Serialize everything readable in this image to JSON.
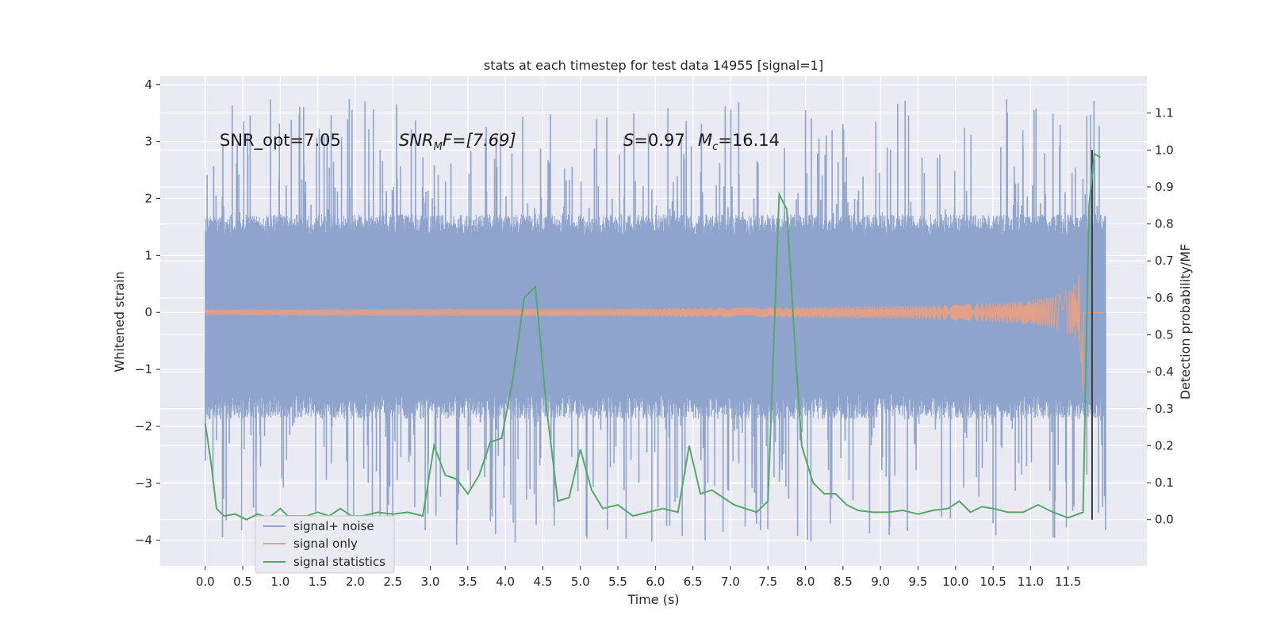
{
  "chart_data": {
    "type": "line",
    "title": "stats at each timestep for test data 14955 [signal=1]",
    "xlabel": "Time (s)",
    "ylabel": "Whitened strain",
    "y2label": "Detection probability/MF",
    "xlim": [
      -0.6,
      12.55
    ],
    "ylim": [
      -4.45,
      4.15
    ],
    "y2lim": [
      -0.125,
      1.2
    ],
    "x_ticks": [
      0.0,
      0.5,
      1.0,
      1.5,
      2.0,
      2.5,
      3.0,
      3.5,
      4.0,
      4.5,
      5.0,
      5.5,
      6.0,
      6.5,
      7.0,
      7.5,
      8.0,
      8.5,
      9.0,
      9.5,
      10.0,
      10.5,
      11.0,
      11.5
    ],
    "x_tick_labels": [
      "0.0",
      "0.5",
      "1.0",
      "1.5",
      "2.0",
      "2.5",
      "3.0",
      "3.5",
      "4.0",
      "4.5",
      "5.0",
      "5.5",
      "6.0",
      "6.5",
      "7.0",
      "7.5",
      "8.0",
      "8.5",
      "9.0",
      "9.5",
      "10.0",
      "10.5",
      "11.0",
      "11.5"
    ],
    "y_ticks": [
      -4,
      -3,
      -2,
      -1,
      0,
      1,
      2,
      3,
      4
    ],
    "y_tick_labels": [
      "−4",
      "−3",
      "−2",
      "−1",
      "0",
      "1",
      "2",
      "3",
      "4"
    ],
    "y2_ticks": [
      0.0,
      0.1,
      0.2,
      0.3,
      0.4,
      0.5,
      0.6,
      0.7,
      0.8,
      0.9,
      1.0,
      1.1
    ],
    "y2_tick_labels": [
      "0.0",
      "0.1",
      "0.2",
      "0.3",
      "0.4",
      "0.5",
      "0.6",
      "0.7",
      "0.8",
      "0.9",
      "1.0",
      "1.1"
    ],
    "grid": true,
    "legend_position": "bottom-left",
    "annotations": {
      "snr_opt": "SNR_opt=7.05",
      "snr_mf_main": "SNR",
      "snr_mf_sub": "M",
      "snr_mf_rest": "F=[7.69]",
      "s_main": "S",
      "s_rest": "=0.97",
      "mc_main": "M",
      "mc_sub": "c",
      "mc_rest": "=16.14"
    },
    "vertical_marker_x": 11.82,
    "series": [
      {
        "name": "signal+ noise",
        "axis": "left",
        "color": "#8fa4cc",
        "kind": "noise",
        "x_range": [
          0.0,
          12.0
        ],
        "typical_envelope": 1.5,
        "max_peak": 3.75,
        "min_trough": -4.08
      },
      {
        "name": "signal only",
        "axis": "left",
        "color": "#e1a087",
        "kind": "chirp",
        "x_range": [
          0.0,
          12.0
        ],
        "peak_time": 11.7,
        "peak_amplitude": 1.3,
        "min_trough": -1.4
      },
      {
        "name": "signal statistics",
        "axis": "right",
        "color": "#55a868",
        "kind": "line",
        "x": [
          0.0,
          0.08,
          0.15,
          0.25,
          0.4,
          0.55,
          0.7,
          0.85,
          1.0,
          1.1,
          1.2,
          1.35,
          1.5,
          1.65,
          1.8,
          1.95,
          2.1,
          2.3,
          2.5,
          2.7,
          2.9,
          3.05,
          3.2,
          3.35,
          3.5,
          3.65,
          3.8,
          3.95,
          4.1,
          4.25,
          4.4,
          4.55,
          4.7,
          4.85,
          5.0,
          5.15,
          5.3,
          5.5,
          5.7,
          5.9,
          6.1,
          6.3,
          6.45,
          6.6,
          6.75,
          6.9,
          7.05,
          7.2,
          7.35,
          7.5,
          7.65,
          7.75,
          7.85,
          7.95,
          8.1,
          8.25,
          8.4,
          8.55,
          8.7,
          8.9,
          9.1,
          9.3,
          9.5,
          9.7,
          9.9,
          10.05,
          10.2,
          10.35,
          10.5,
          10.7,
          10.9,
          11.1,
          11.3,
          11.5,
          11.7,
          11.78,
          11.85,
          11.93
        ],
        "y": [
          0.26,
          0.15,
          0.03,
          0.01,
          0.015,
          0.0,
          0.015,
          0.005,
          0.03,
          0.01,
          0.01,
          0.01,
          0.02,
          0.01,
          0.03,
          0.01,
          0.01,
          0.02,
          0.015,
          0.02,
          0.01,
          0.2,
          0.12,
          0.11,
          0.07,
          0.12,
          0.21,
          0.22,
          0.38,
          0.6,
          0.63,
          0.3,
          0.05,
          0.06,
          0.19,
          0.08,
          0.03,
          0.04,
          0.01,
          0.02,
          0.03,
          0.02,
          0.2,
          0.07,
          0.08,
          0.06,
          0.04,
          0.03,
          0.02,
          0.05,
          0.88,
          0.84,
          0.5,
          0.2,
          0.1,
          0.07,
          0.07,
          0.04,
          0.025,
          0.02,
          0.02,
          0.025,
          0.015,
          0.025,
          0.03,
          0.05,
          0.02,
          0.035,
          0.03,
          0.02,
          0.02,
          0.04,
          0.02,
          0.005,
          0.02,
          0.85,
          0.99,
          0.98
        ]
      }
    ]
  }
}
